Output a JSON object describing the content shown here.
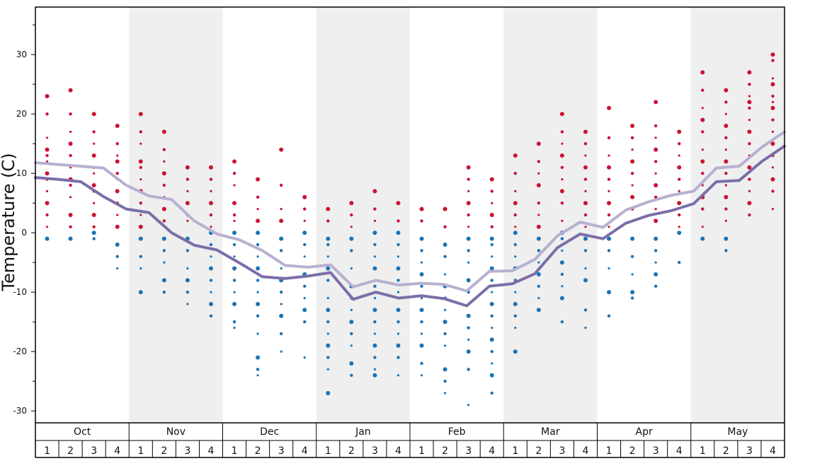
{
  "chart_data": {
    "type": "scatter",
    "ylabel": "Temperature (C)",
    "ylim": [
      -32,
      38
    ],
    "y_ticks": [
      -30,
      -20,
      -10,
      0,
      10,
      20,
      30
    ],
    "months": [
      "Oct",
      "Nov",
      "Dec",
      "Jan",
      "Feb",
      "Mar",
      "Apr",
      "May"
    ],
    "weeks": [
      "1",
      "2",
      "3",
      "4"
    ],
    "colors": {
      "warm_dots": "#cc1133",
      "cold_dots": "#1a73b5",
      "line_upper": "#b8b0d0",
      "line_lower": "#7b6ea8",
      "band_shade": "#efefef"
    },
    "series": [
      {
        "values": [
          11.8,
          11.5,
          11.2,
          10.9,
          8.0,
          6.2,
          5.6,
          2.0,
          -0.2,
          -1.2,
          -3.0,
          -5.5,
          -5.8,
          -5.4,
          -9.1,
          -8.0,
          -8.8,
          -8.5,
          -8.7,
          -9.8,
          -6.5,
          -6.4,
          -4.5,
          -0.5,
          1.8,
          0.9,
          3.8,
          5.2,
          6.3,
          7.0,
          10.9,
          11.2,
          14.4,
          17.0
        ]
      },
      {
        "values": [
          9.3,
          9.0,
          8.6,
          6.1,
          4.0,
          3.4,
          0.0,
          -2.1,
          -2.9,
          -5.1,
          -7.4,
          -7.7,
          -7.3,
          -6.7,
          -11.2,
          -10.0,
          -11.0,
          -10.6,
          -11.1,
          -12.3,
          -9.0,
          -8.6,
          -6.9,
          -2.5,
          -0.2,
          -1.0,
          1.6,
          2.9,
          3.7,
          4.9,
          8.6,
          8.8,
          12.0,
          14.6
        ]
      }
    ],
    "scatter": [
      {
        "x": 0,
        "hot": [
          23,
          20,
          16,
          14,
          13,
          12,
          10,
          9,
          7,
          5,
          3,
          1
        ],
        "cold": [
          -1
        ]
      },
      {
        "x": 1,
        "hot": [
          24,
          20,
          17,
          15,
          13,
          11,
          9,
          8,
          6,
          3,
          1
        ],
        "cold": [
          -1
        ]
      },
      {
        "x": 2,
        "hot": [
          20,
          17,
          15,
          13,
          11,
          10,
          8,
          7,
          5,
          3,
          1
        ],
        "cold": [
          0,
          -1
        ]
      },
      {
        "x": 3,
        "hot": [
          18,
          15,
          13,
          12,
          10,
          9,
          7,
          5,
          3,
          1
        ],
        "cold": [
          -2,
          -4,
          -6
        ]
      },
      {
        "x": 4,
        "hot": [
          20,
          17,
          15,
          12,
          11,
          9,
          7,
          5,
          3,
          1
        ],
        "cold": [
          -1,
          -4,
          -6,
          -10
        ]
      },
      {
        "x": 5,
        "hot": [
          17,
          14,
          12,
          10,
          8,
          6,
          4,
          2
        ],
        "cold": [
          -1,
          -3,
          -5,
          -8,
          -10
        ]
      },
      {
        "x": 6,
        "hot": [
          11,
          9,
          7,
          5,
          3,
          2
        ],
        "cold": [
          -1,
          -3,
          -6,
          -8,
          -10,
          -12
        ]
      },
      {
        "x": 7,
        "hot": [
          11,
          9,
          7,
          5,
          3,
          1
        ],
        "cold": [
          0,
          -2,
          -4,
          -6,
          -8,
          -10,
          -12,
          -14
        ]
      },
      {
        "x": 8,
        "hot": [
          12,
          10,
          8,
          5,
          3,
          2
        ],
        "cold": [
          0,
          -2,
          -4,
          -6,
          -8,
          -10,
          -12,
          -15,
          -16
        ]
      },
      {
        "x": 9,
        "hot": [
          9,
          6,
          4,
          2
        ],
        "cold": [
          0,
          -2,
          -4,
          -6,
          -8,
          -10,
          -12,
          -14,
          -17,
          -21,
          -23,
          -24
        ]
      },
      {
        "x": 10,
        "hot": [
          14,
          8,
          4,
          2
        ],
        "cold": [
          -1,
          -3,
          -6,
          -8,
          -10,
          -12,
          -14,
          -17,
          -20
        ]
      },
      {
        "x": 11,
        "hot": [
          6,
          4,
          2
        ],
        "cold": [
          0,
          -2,
          -4,
          -7,
          -9,
          -11,
          -13,
          -15,
          -21
        ]
      },
      {
        "x": 12,
        "hot": [
          4,
          2
        ],
        "cold": [
          -1,
          -2,
          -4,
          -6,
          -8,
          -11,
          -13,
          -15,
          -17,
          -19,
          -21,
          -23,
          -27
        ]
      },
      {
        "x": 13,
        "hot": [
          5,
          3,
          1
        ],
        "cold": [
          -1,
          -3,
          -6,
          -9,
          -11,
          -13,
          -15,
          -17,
          -19,
          -22,
          -24
        ]
      },
      {
        "x": 14,
        "hot": [
          7,
          4,
          2
        ],
        "cold": [
          0,
          -2,
          -4,
          -6,
          -9,
          -11,
          -13,
          -15,
          -17,
          -19,
          -21,
          -23,
          -24
        ]
      },
      {
        "x": 15,
        "hot": [
          5,
          2
        ],
        "cold": [
          0,
          -2,
          -4,
          -6,
          -8,
          -10,
          -13,
          -15,
          -17,
          -19,
          -21,
          -24
        ]
      },
      {
        "x": 16,
        "hot": [
          4,
          2
        ],
        "cold": [
          -1,
          -3,
          -5,
          -7,
          -9,
          -11,
          -13,
          -15,
          -17,
          -19,
          -22,
          -24
        ]
      },
      {
        "x": 17,
        "hot": [
          4,
          1
        ],
        "cold": [
          -2,
          -4,
          -7,
          -9,
          -11,
          -13,
          -15,
          -17,
          -19,
          -23,
          -25,
          -27
        ]
      },
      {
        "x": 18,
        "hot": [
          11,
          9,
          7,
          5,
          3,
          1
        ],
        "cold": [
          -1,
          -3,
          -5,
          -8,
          -10,
          -12,
          -14,
          -16,
          -18,
          -20,
          -23,
          -29
        ]
      },
      {
        "x": 19,
        "hot": [
          9,
          7,
          5,
          3,
          1
        ],
        "cold": [
          -1,
          -2,
          -4,
          -6,
          -8,
          -10,
          -12,
          -14,
          -16,
          -18,
          -20,
          -22,
          -24,
          -27
        ]
      },
      {
        "x": 20,
        "hot": [
          13,
          10,
          7,
          5,
          3,
          1
        ],
        "cold": [
          0,
          -2,
          -4,
          -6,
          -8,
          -10,
          -12,
          -14,
          -16,
          -20
        ]
      },
      {
        "x": 21,
        "hot": [
          15,
          12,
          10,
          8,
          5,
          3,
          1
        ],
        "cold": [
          -1,
          -3,
          -5,
          -7,
          -9,
          -11,
          -13
        ]
      },
      {
        "x": 22,
        "hot": [
          20,
          17,
          15,
          13,
          11,
          9,
          7,
          5,
          2
        ],
        "cold": [
          0,
          -1,
          -3,
          -5,
          -7,
          -9,
          -11,
          -15
        ]
      },
      {
        "x": 23,
        "hot": [
          17,
          15,
          13,
          11,
          9,
          7,
          5,
          3,
          1
        ],
        "cold": [
          -1,
          -3,
          -6,
          -8,
          -13,
          -16
        ]
      },
      {
        "x": 24,
        "hot": [
          21,
          16,
          13,
          11,
          9,
          7,
          5,
          3,
          1
        ],
        "cold": [
          -1,
          -3,
          -6,
          -10,
          -14
        ]
      },
      {
        "x": 25,
        "hot": [
          18,
          16,
          14,
          12,
          10,
          8,
          6,
          4,
          2
        ],
        "cold": [
          -1,
          -4,
          -7,
          -10,
          -11
        ]
      },
      {
        "x": 26,
        "hot": [
          22,
          18,
          16,
          14,
          12,
          10,
          8,
          6,
          4,
          2
        ],
        "cold": [
          -1,
          -3,
          -5,
          -7,
          -9
        ]
      },
      {
        "x": 27,
        "hot": [
          17,
          15,
          13,
          11,
          9,
          7,
          5,
          3,
          1
        ],
        "cold": [
          0,
          -5
        ]
      },
      {
        "x": 28,
        "hot": [
          27,
          24,
          21,
          19,
          17,
          14,
          12,
          10,
          8,
          6,
          4,
          1
        ],
        "cold": [
          -1
        ]
      },
      {
        "x": 29,
        "hot": [
          24,
          22,
          20,
          18,
          16,
          14,
          12,
          10,
          8,
          6,
          4,
          2
        ],
        "cold": [
          -1,
          -3
        ]
      },
      {
        "x": 30,
        "hot": [
          27,
          25,
          23,
          22,
          21,
          19,
          17,
          15,
          13,
          11,
          9,
          7,
          5,
          3
        ]
      },
      {
        "x": 31,
        "hot": [
          30,
          29,
          26,
          25,
          23,
          22,
          21,
          19,
          17,
          15,
          13,
          11,
          9,
          7,
          4
        ]
      }
    ]
  }
}
